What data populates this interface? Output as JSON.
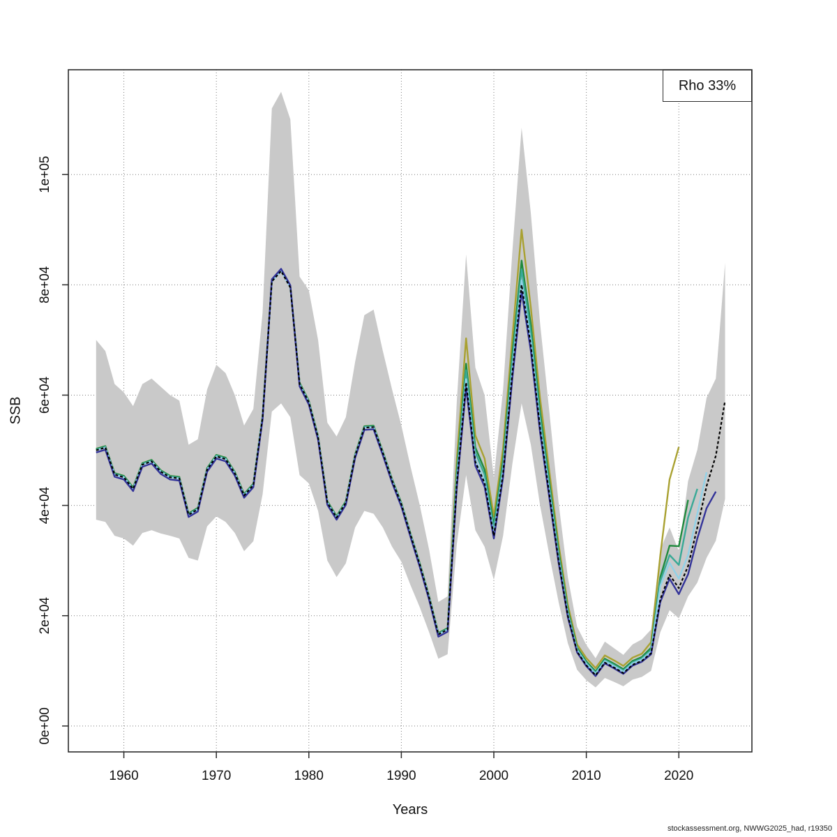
{
  "figure": {
    "legend_label": "Rho 33%",
    "x_axis_label": "Years",
    "y_axis_label": "SSB",
    "footer": "stockassessment.org, NWWG2025_had, r19350"
  },
  "chart_data": {
    "type": "line",
    "title": "",
    "xlabel": "Years",
    "ylabel": "SSB",
    "legend_position": "top-right",
    "legend_entries": [
      "Rho 33%"
    ],
    "grid": "dotted",
    "xlim": [
      1954.0,
      2027.9
    ],
    "ylim": [
      -4700,
      119000
    ],
    "x_ticks": [
      {
        "value": 1960,
        "label": "1960"
      },
      {
        "value": 1970,
        "label": "1970"
      },
      {
        "value": 1980,
        "label": "1980"
      },
      {
        "value": 1990,
        "label": "1990"
      },
      {
        "value": 2000,
        "label": "2000"
      },
      {
        "value": 2010,
        "label": "2010"
      },
      {
        "value": 2020,
        "label": "2020"
      }
    ],
    "y_ticks": [
      {
        "value": 0,
        "label": "0e+00"
      },
      {
        "value": 20000,
        "label": "2e+04"
      },
      {
        "value": 40000,
        "label": "4e+04"
      },
      {
        "value": 60000,
        "label": "6e+04"
      },
      {
        "value": 80000,
        "label": "8e+04"
      },
      {
        "value": 100000,
        "label": "1e+05"
      }
    ],
    "band": {
      "name": "confidence-interval",
      "color": "#c9c9c9",
      "start_year": 1957,
      "lo": [
        37400,
        37000,
        34500,
        34000,
        32700,
        35000,
        35500,
        34900,
        34500,
        34000,
        30500,
        30000,
        36200,
        38000,
        37000,
        35000,
        31700,
        33500,
        42000,
        57000,
        58500,
        56000,
        45500,
        44000,
        39000,
        30000,
        27000,
        29500,
        36000,
        39000,
        38500,
        36000,
        32500,
        29800,
        25500,
        21500,
        17000,
        12200,
        13000,
        33000,
        45500,
        35500,
        32500,
        26500,
        34500,
        47500,
        58500,
        51000,
        40000,
        31000,
        22500,
        15000,
        10200,
        8300,
        7000,
        8700,
        8000,
        7200,
        8400,
        8900,
        10000,
        17000,
        21000,
        19500,
        23500,
        26000,
        30500,
        33600,
        41200
      ],
      "hi": [
        70000,
        68000,
        62000,
        60500,
        58000,
        62000,
        63000,
        61500,
        60000,
        59000,
        51000,
        52000,
        61000,
        65500,
        64000,
        60000,
        54500,
        57500,
        75000,
        112000,
        115000,
        110000,
        81500,
        79000,
        70000,
        55000,
        52500,
        56000,
        66000,
        74500,
        75500,
        68000,
        61000,
        54500,
        47000,
        40000,
        32000,
        22500,
        23500,
        59000,
        85500,
        65000,
        60000,
        45000,
        61000,
        86000,
        108500,
        93000,
        73000,
        57000,
        40500,
        27000,
        18000,
        14700,
        12300,
        15300,
        14100,
        12900,
        14800,
        15700,
        17500,
        32000,
        36000,
        31700,
        44400,
        50100,
        59500,
        63000,
        84000
      ]
    },
    "series": [
      {
        "name": "retro-peel-2020",
        "color": "#a9a131",
        "dash": false,
        "width": 2.4,
        "start_year": 1957,
        "values": [
          50250,
          50750,
          45850,
          45350,
          43250,
          47650,
          48250,
          46350,
          45350,
          45150,
          38550,
          39550,
          46750,
          49150,
          48650,
          46050,
          42050,
          43950,
          56250,
          80850,
          82750,
          79750,
          62250,
          58950,
          52550,
          40750,
          38050,
          40750,
          49250,
          54350,
          54450,
          49750,
          44750,
          40450,
          34850,
          29450,
          23550,
          16850,
          17750,
          48400,
          70300,
          52700,
          48500,
          38000,
          50400,
          70400,
          90000,
          75900,
          59400,
          46200,
          33000,
          22000,
          14800,
          12300,
          10500,
          12800,
          11900,
          10900,
          12400,
          13100,
          15200,
          31000,
          44700,
          50600
        ]
      },
      {
        "name": "retro-peel-2021",
        "color": "#1f8a3d",
        "dash": false,
        "width": 2.4,
        "start_year": 1957,
        "values": [
          50250,
          50750,
          45850,
          45350,
          43250,
          47650,
          48250,
          46350,
          45350,
          45150,
          38550,
          39550,
          46750,
          49150,
          48650,
          46050,
          42050,
          43950,
          56250,
          80850,
          82750,
          79750,
          62250,
          58950,
          52550,
          40750,
          38050,
          40750,
          49250,
          54350,
          54450,
          49750,
          44750,
          40450,
          34850,
          29450,
          23550,
          16850,
          17750,
          46400,
          65700,
          50500,
          46500,
          36400,
          48300,
          67500,
          84400,
          72800,
          57000,
          44300,
          31700,
          21100,
          14200,
          11700,
          9900,
          12200,
          11300,
          10300,
          11800,
          12500,
          14200,
          27000,
          32700,
          32600,
          41000
        ]
      },
      {
        "name": "retro-peel-2022",
        "color": "#39a996",
        "dash": false,
        "width": 2.4,
        "start_year": 1957,
        "values": [
          50100,
          50600,
          45700,
          45200,
          43100,
          47500,
          48100,
          46200,
          45200,
          45000,
          38400,
          39400,
          46600,
          49000,
          48500,
          45900,
          41900,
          43800,
          56100,
          80700,
          82600,
          79600,
          62100,
          58800,
          52400,
          40600,
          37900,
          40600,
          49100,
          54200,
          54300,
          49600,
          44600,
          40300,
          34700,
          29300,
          23400,
          16700,
          17600,
          45500,
          64500,
          49600,
          45600,
          35700,
          47400,
          66200,
          82800,
          71400,
          55900,
          43500,
          31100,
          20700,
          13950,
          11450,
          9650,
          11950,
          11050,
          10050,
          11550,
          12250,
          13800,
          26300,
          31000,
          29200,
          37800,
          43000
        ]
      },
      {
        "name": "retro-peel-2023",
        "color": "#92d2e8",
        "dash": false,
        "width": 2.4,
        "start_year": 1957,
        "values": [
          50000,
          50500,
          45600,
          45100,
          43000,
          47400,
          48000,
          46100,
          45100,
          44900,
          38300,
          39300,
          46500,
          48900,
          48400,
          45800,
          41800,
          43700,
          56000,
          80600,
          82500,
          79500,
          62000,
          58700,
          52300,
          40500,
          37800,
          40500,
          49000,
          54100,
          54200,
          49500,
          44500,
          40200,
          34600,
          29200,
          23300,
          16600,
          17500,
          44400,
          62900,
          48400,
          44500,
          34800,
          46300,
          64600,
          80800,
          69700,
          54500,
          42400,
          30300,
          20200,
          13750,
          11250,
          9450,
          11750,
          10850,
          9850,
          11350,
          12050,
          13500,
          25400,
          29600,
          26700,
          31000,
          38500,
          46000
        ]
      },
      {
        "name": "retro-peel-2024",
        "color": "#333399",
        "dash": false,
        "width": 2.4,
        "start_year": 1957,
        "values": [
          49600,
          50100,
          45200,
          44700,
          42600,
          47000,
          47600,
          45700,
          44700,
          44500,
          37900,
          38900,
          46100,
          48500,
          48000,
          45400,
          41400,
          43300,
          55600,
          81000,
          82900,
          79900,
          61600,
          58300,
          51900,
          40100,
          37400,
          40100,
          48600,
          53700,
          53800,
          49100,
          44100,
          39800,
          34200,
          28800,
          22900,
          16200,
          17100,
          43300,
          61400,
          47200,
          43400,
          34000,
          45100,
          63000,
          78800,
          68000,
          53200,
          41400,
          29600,
          19700,
          13350,
          10850,
          9050,
          11350,
          10450,
          9450,
          10950,
          11650,
          13000,
          22500,
          26700,
          23900,
          27500,
          34000,
          39500,
          42500
        ]
      },
      {
        "name": "base-run-2025",
        "color": "#000000",
        "dash": true,
        "width": 2.2,
        "start_year": 1957,
        "values": [
          50000,
          50500,
          45600,
          45100,
          43000,
          47400,
          48000,
          46100,
          45100,
          44900,
          38300,
          39300,
          46500,
          48900,
          48400,
          45800,
          41800,
          43700,
          56000,
          80600,
          82500,
          79500,
          62000,
          58700,
          52300,
          40500,
          37800,
          40500,
          49000,
          54100,
          54200,
          49500,
          44500,
          40200,
          34600,
          29200,
          23300,
          16600,
          17500,
          44000,
          62300,
          47900,
          44100,
          34500,
          45800,
          64000,
          80000,
          69000,
          54000,
          42000,
          30000,
          20000,
          13500,
          11000,
          9200,
          11500,
          10600,
          9600,
          11100,
          11800,
          13200,
          23000,
          27400,
          25000,
          29000,
          36000,
          43500,
          49000,
          59000
        ]
      }
    ]
  }
}
